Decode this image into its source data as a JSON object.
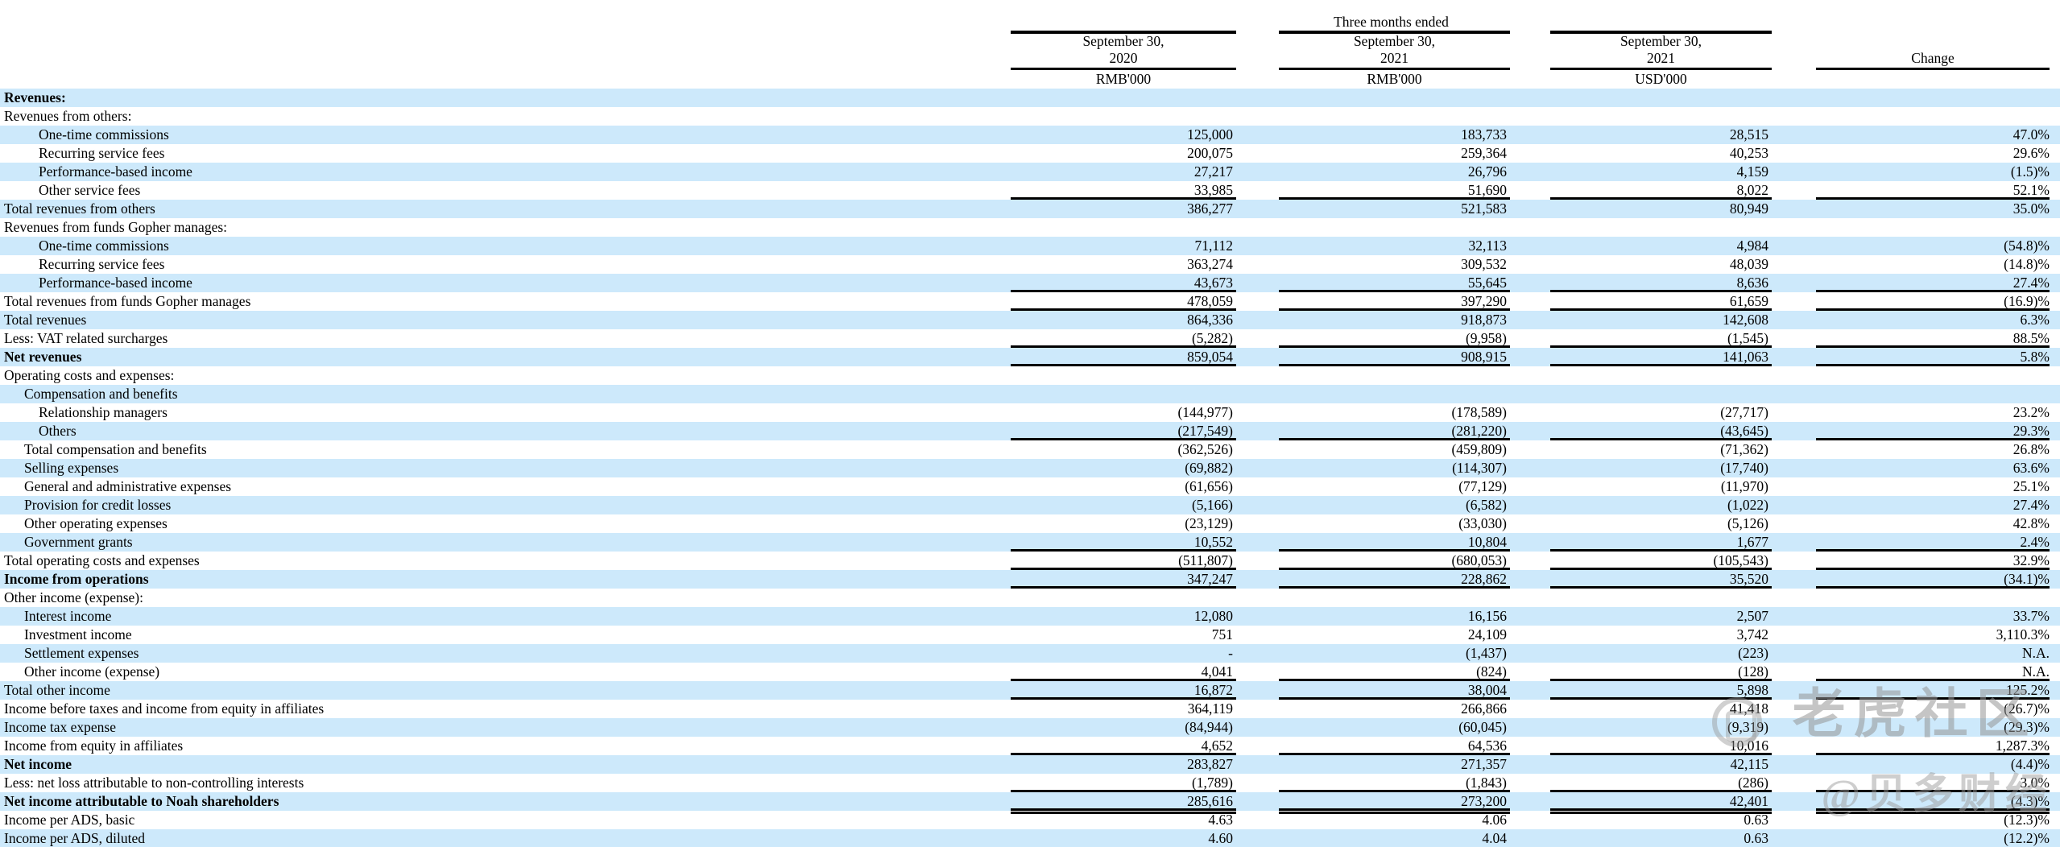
{
  "header": {
    "group_title": "Three months ended",
    "columns": [
      {
        "date_line1": "September 30,",
        "date_line2": "2020",
        "unit": "RMB'000"
      },
      {
        "date_line1": "September 30,",
        "date_line2": "2021",
        "unit": "RMB'000"
      },
      {
        "date_line1": "September 30,",
        "date_line2": "2021",
        "unit": "USD'000"
      }
    ],
    "change_label": "Change"
  },
  "colors": {
    "row_highlight": "#cde9fb",
    "rule": "#000000",
    "text": "#000000"
  },
  "watermark": {
    "logo": "tiger-community-logo",
    "line1": "老虎社区",
    "line2": "@贝多财经"
  },
  "rows": [
    {
      "label": "Revenues:",
      "indent": 0,
      "bold": true,
      "values": [
        "",
        "",
        "",
        ""
      ],
      "rule": "none"
    },
    {
      "label": "Revenues from others:",
      "indent": 0,
      "bold": false,
      "values": [
        "",
        "",
        "",
        ""
      ],
      "rule": "none"
    },
    {
      "label": "One-time commissions",
      "indent": 2,
      "bold": false,
      "values": [
        "125,000",
        "183,733",
        "28,515",
        "47.0%"
      ],
      "rule": "none"
    },
    {
      "label": "Recurring service fees",
      "indent": 2,
      "bold": false,
      "values": [
        "200,075",
        "259,364",
        "40,253",
        "29.6%"
      ],
      "rule": "none"
    },
    {
      "label": "Performance-based income",
      "indent": 2,
      "bold": false,
      "values": [
        "27,217",
        "26,796",
        "4,159",
        "(1.5)%"
      ],
      "rule": "none"
    },
    {
      "label": "Other service fees",
      "indent": 2,
      "bold": false,
      "values": [
        "33,985",
        "51,690",
        "8,022",
        "52.1%"
      ],
      "rule": "single"
    },
    {
      "label": "Total revenues from others",
      "indent": 0,
      "bold": false,
      "values": [
        "386,277",
        "521,583",
        "80,949",
        "35.0%"
      ],
      "rule": "none"
    },
    {
      "label": "Revenues from funds Gopher manages:",
      "indent": 0,
      "bold": false,
      "values": [
        "",
        "",
        "",
        ""
      ],
      "rule": "none"
    },
    {
      "label": "One-time commissions",
      "indent": 2,
      "bold": false,
      "values": [
        "71,112",
        "32,113",
        "4,984",
        "(54.8)%"
      ],
      "rule": "none"
    },
    {
      "label": "Recurring service fees",
      "indent": 2,
      "bold": false,
      "values": [
        "363,274",
        "309,532",
        "48,039",
        "(14.8)%"
      ],
      "rule": "none"
    },
    {
      "label": "Performance-based income",
      "indent": 2,
      "bold": false,
      "values": [
        "43,673",
        "55,645",
        "8,636",
        "27.4%"
      ],
      "rule": "single"
    },
    {
      "label": "Total revenues from funds Gopher manages",
      "indent": 0,
      "bold": false,
      "values": [
        "478,059",
        "397,290",
        "61,659",
        "(16.9)%"
      ],
      "rule": "single"
    },
    {
      "label": "Total revenues",
      "indent": 0,
      "bold": false,
      "values": [
        "864,336",
        "918,873",
        "142,608",
        "6.3%"
      ],
      "rule": "none"
    },
    {
      "label": "Less: VAT related surcharges",
      "indent": 0,
      "bold": false,
      "values": [
        "(5,282)",
        "(9,958)",
        "(1,545)",
        "88.5%"
      ],
      "rule": "single"
    },
    {
      "label": "Net revenues",
      "indent": 0,
      "bold": true,
      "values": [
        "859,054",
        "908,915",
        "141,063",
        "5.8%"
      ],
      "rule": "single"
    },
    {
      "label": "Operating costs and expenses:",
      "indent": 0,
      "bold": false,
      "values": [
        "",
        "",
        "",
        ""
      ],
      "rule": "none"
    },
    {
      "label": "Compensation and benefits",
      "indent": 1,
      "bold": false,
      "values": [
        "",
        "",
        "",
        ""
      ],
      "rule": "none"
    },
    {
      "label": "Relationship managers",
      "indent": 2,
      "bold": false,
      "values": [
        "(144,977)",
        "(178,589)",
        "(27,717)",
        "23.2%"
      ],
      "rule": "none"
    },
    {
      "label": "Others",
      "indent": 2,
      "bold": false,
      "values": [
        "(217,549)",
        "(281,220)",
        "(43,645)",
        "29.3%"
      ],
      "rule": "single"
    },
    {
      "label": "Total compensation and benefits",
      "indent": 1,
      "bold": false,
      "values": [
        "(362,526)",
        "(459,809)",
        "(71,362)",
        "26.8%"
      ],
      "rule": "none"
    },
    {
      "label": "Selling expenses",
      "indent": 1,
      "bold": false,
      "values": [
        "(69,882)",
        "(114,307)",
        "(17,740)",
        "63.6%"
      ],
      "rule": "none"
    },
    {
      "label": "General and administrative expenses",
      "indent": 1,
      "bold": false,
      "values": [
        "(61,656)",
        "(77,129)",
        "(11,970)",
        "25.1%"
      ],
      "rule": "none"
    },
    {
      "label": "Provision for credit losses",
      "indent": 1,
      "bold": false,
      "values": [
        "(5,166)",
        "(6,582)",
        "(1,022)",
        "27.4%"
      ],
      "rule": "none"
    },
    {
      "label": "Other operating expenses",
      "indent": 1,
      "bold": false,
      "values": [
        "(23,129)",
        "(33,030)",
        "(5,126)",
        "42.8%"
      ],
      "rule": "none"
    },
    {
      "label": "Government grants",
      "indent": 1,
      "bold": false,
      "values": [
        "10,552",
        "10,804",
        "1,677",
        "2.4%"
      ],
      "rule": "single"
    },
    {
      "label": "Total operating costs and expenses",
      "indent": 0,
      "bold": false,
      "values": [
        "(511,807)",
        "(680,053)",
        "(105,543)",
        "32.9%"
      ],
      "rule": "single"
    },
    {
      "label": "Income from operations",
      "indent": 0,
      "bold": true,
      "values": [
        "347,247",
        "228,862",
        "35,520",
        "(34.1)%"
      ],
      "rule": "single"
    },
    {
      "label": "Other income (expense):",
      "indent": 0,
      "bold": false,
      "values": [
        "",
        "",
        "",
        ""
      ],
      "rule": "none"
    },
    {
      "label": "Interest income",
      "indent": 1,
      "bold": false,
      "values": [
        "12,080",
        "16,156",
        "2,507",
        "33.7%"
      ],
      "rule": "none"
    },
    {
      "label": "Investment income",
      "indent": 1,
      "bold": false,
      "values": [
        "751",
        "24,109",
        "3,742",
        "3,110.3%"
      ],
      "rule": "none"
    },
    {
      "label": "Settlement expenses",
      "indent": 1,
      "bold": false,
      "values": [
        "-",
        "(1,437)",
        "(223)",
        "N.A."
      ],
      "rule": "none"
    },
    {
      "label": "Other income (expense)",
      "indent": 1,
      "bold": false,
      "values": [
        "4,041",
        "(824)",
        "(128)",
        "N.A."
      ],
      "rule": "single"
    },
    {
      "label": "Total other income",
      "indent": 0,
      "bold": false,
      "values": [
        "16,872",
        "38,004",
        "5,898",
        "125.2%"
      ],
      "rule": "single"
    },
    {
      "label": "Income before taxes and income from equity in affiliates",
      "indent": 0,
      "bold": false,
      "values": [
        "364,119",
        "266,866",
        "41,418",
        "(26.7)%"
      ],
      "rule": "none"
    },
    {
      "label": "Income tax expense",
      "indent": 0,
      "bold": false,
      "values": [
        "(84,944)",
        "(60,045)",
        "(9,319)",
        "(29.3)%"
      ],
      "rule": "none"
    },
    {
      "label": "Income from equity in affiliates",
      "indent": 0,
      "bold": false,
      "values": [
        "4,652",
        "64,536",
        "10,016",
        "1,287.3%"
      ],
      "rule": "single"
    },
    {
      "label": "Net income",
      "indent": 0,
      "bold": true,
      "values": [
        "283,827",
        "271,357",
        "42,115",
        "(4.4)%"
      ],
      "rule": "none"
    },
    {
      "label": "Less: net loss attributable to non-controlling interests",
      "indent": 0,
      "bold": false,
      "values": [
        "(1,789)",
        "(1,843)",
        "(286)",
        "3.0%"
      ],
      "rule": "single"
    },
    {
      "label": "Net income attributable to Noah shareholders",
      "indent": 0,
      "bold": true,
      "values": [
        "285,616",
        "273,200",
        "42,401",
        "(4.3)%"
      ],
      "rule": "double"
    },
    {
      "label": "Income per ADS, basic",
      "indent": 0,
      "bold": false,
      "values": [
        "4.63",
        "4.06",
        "0.63",
        "(12.3)%"
      ],
      "rule": "none"
    },
    {
      "label": "Income per ADS, diluted",
      "indent": 0,
      "bold": false,
      "values": [
        "4.60",
        "4.04",
        "0.63",
        "(12.2)%"
      ],
      "rule": "none"
    }
  ]
}
